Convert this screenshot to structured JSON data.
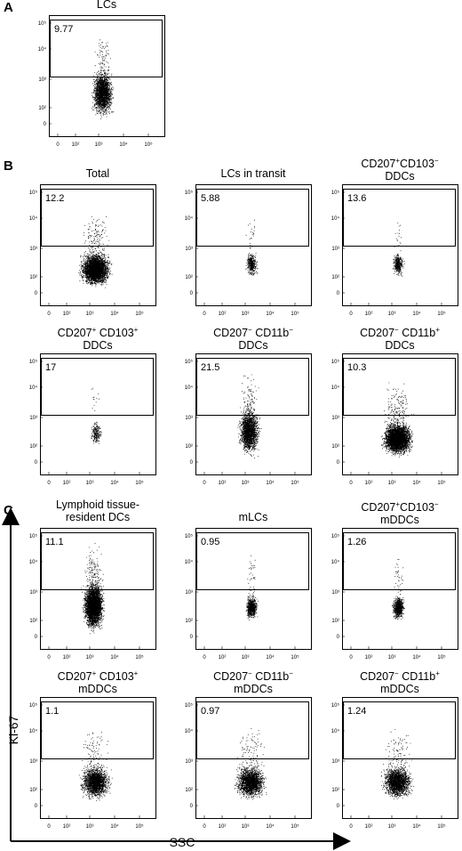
{
  "panels": {
    "A": "A",
    "B": "B",
    "C": "C"
  },
  "axes": {
    "y_label": "Ki-67",
    "x_label": "SSC"
  },
  "tick_labels": {
    "y": [
      "10⁵",
      "10⁴",
      "10³",
      "10²",
      "0"
    ],
    "x": [
      "0",
      "10²",
      "10³",
      "10⁴",
      "10⁵"
    ]
  },
  "chart_data": [
    {
      "type": "scatter",
      "panel": "A",
      "title": "LCs",
      "gate_percent": "9.77",
      "density": "high",
      "shape": "tall"
    },
    {
      "type": "scatter",
      "panel": "B",
      "title": "Total",
      "gate_percent": "12.2",
      "density": "very-high",
      "shape": "wide"
    },
    {
      "type": "scatter",
      "panel": "B",
      "title": "LCs in transit",
      "gate_percent": "5.88",
      "density": "low",
      "shape": "tight"
    },
    {
      "type": "scatter",
      "panel": "B",
      "title": "CD207⁺CD103⁻ DDCs",
      "gate_percent": "13.6",
      "density": "low",
      "shape": "tight"
    },
    {
      "type": "scatter",
      "panel": "B",
      "title": "CD207⁺ CD103⁺ DDCs",
      "gate_percent": "17",
      "density": "very-low",
      "shape": "tight"
    },
    {
      "type": "scatter",
      "panel": "B",
      "title": "CD207⁻ CD11b⁻ DDCs",
      "gate_percent": "21.5",
      "density": "high",
      "shape": "tall"
    },
    {
      "type": "scatter",
      "panel": "B",
      "title": "CD207⁻ CD11b⁺ DDCs",
      "gate_percent": "10.3",
      "density": "very-high",
      "shape": "wide"
    },
    {
      "type": "scatter",
      "panel": "C",
      "title": "Lymphoid tissue-resident DCs",
      "gate_percent": "11.1",
      "density": "very-high",
      "shape": "tall"
    },
    {
      "type": "scatter",
      "panel": "C",
      "title": "mLCs",
      "gate_percent": "0.95",
      "density": "medium",
      "shape": "tight"
    },
    {
      "type": "scatter",
      "panel": "C",
      "title": "CD207⁺CD103⁻ mDDCs",
      "gate_percent": "1.26",
      "density": "medium",
      "shape": "tight"
    },
    {
      "type": "scatter",
      "panel": "C",
      "title": "CD207⁺ CD103⁺ mDDCs",
      "gate_percent": "1.1",
      "density": "high",
      "shape": "wide"
    },
    {
      "type": "scatter",
      "panel": "C",
      "title": "CD207⁻ CD11b⁻ mDDCs",
      "gate_percent": "0.97",
      "density": "high",
      "shape": "wide"
    },
    {
      "type": "scatter",
      "panel": "C",
      "title": "CD207⁻ CD11b⁺ mDDCs",
      "gate_percent": "1.24",
      "density": "high",
      "shape": "wide"
    }
  ]
}
